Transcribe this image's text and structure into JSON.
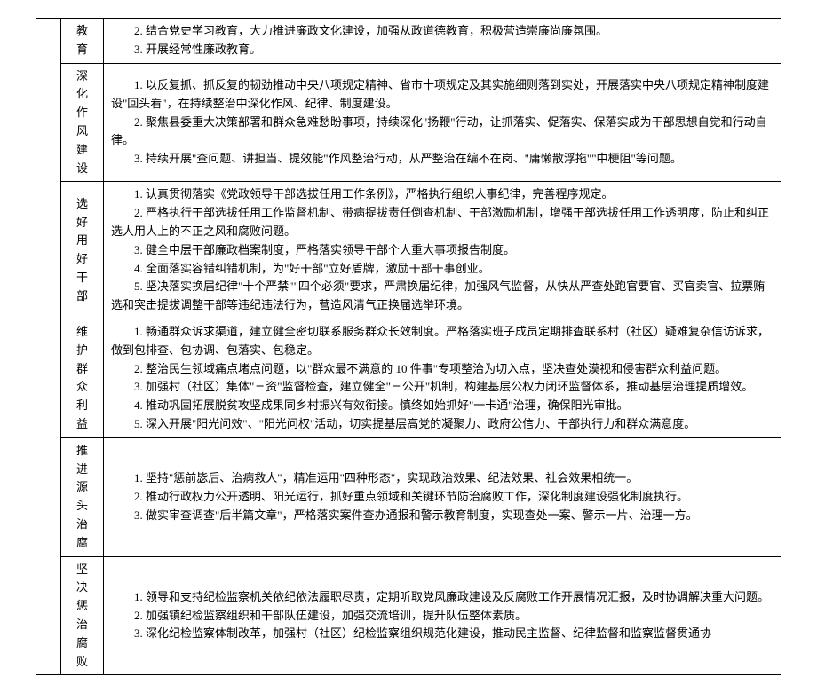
{
  "rows": [
    {
      "label": "教育",
      "lines": [
        "2. 结合党史学习教育，大力推进廉政文化建设，加强从政道德教育，积极营造崇廉尚廉氛围。",
        "3. 开展经常性廉政教育。"
      ]
    },
    {
      "label": "深化作风建设",
      "lines": [
        "1. 以反复抓、抓反复的韧劲推动中央八项规定精神、省市十项规定及其实施细则落到实处，开展落实中央八项规定精神制度建设\"回头看\"，在持续整治中深化作风、纪律、制度建设。",
        "2. 聚焦县委重大决策部署和群众急难愁盼事项，持续深化\"扬鞭\"行动，让抓落实、促落实、保落实成为干部思想自觉和行动自律。",
        "3. 持续开展\"查问题、讲担当、提效能\"作风整治行动，从严整治在编不在岗、\"庸懒散浮拖\"\"中梗阻\"等问题。"
      ]
    },
    {
      "label": "选好用好干部",
      "lines": [
        "1. 认真贯彻落实《党政领导干部选拔任用工作条例》，严格执行组织人事纪律，完善程序规定。",
        "2. 严格执行干部选拔任用工作监督机制、带病提拔责任倒查机制、干部激励机制，增强干部选拔任用工作透明度，防止和纠正选人用人上的不正之风和腐败问题。",
        "3. 健全中层干部廉政档案制度，严格落实领导干部个人重大事项报告制度。",
        "4. 全面落实容错纠错机制，为\"好干部\"立好盾牌，激励干部干事创业。",
        "5. 坚决落实换届纪律\"十个严禁\"\"四个必须\"要求，严肃换届纪律，加强风气监督，从快从严查处跑官要官、买官卖官、拉票贿选和突击提拔调整干部等违纪违法行为，营造风清气正换届选举环境。"
      ]
    },
    {
      "label": "维护群众利益",
      "lines": [
        "1. 畅通群众诉求渠道，建立健全密切联系服务群众长效制度。严格落实班子成员定期排查联系村（社区）疑难复杂信访诉求，做到包排查、包协调、包落实、包稳定。",
        "2. 整治民生领域痛点堵点问题，以\"群众最不满意的 10 件事\"专项整治为切入点，坚决查处漠视和侵害群众利益问题。",
        "3. 加强村（社区）集体\"三资\"监督检查，建立健全\"三公开\"机制，构建基层公权力闭环监督体系，推动基层治理提质增效。",
        "4. 推动巩固拓展脱贫攻坚成果同乡村振兴有效衔接。慎终如始抓好\"一卡通\"治理，确保阳光审批。",
        "5. 深入开展\"阳光问效\"、\"阳光问权\"活动，切实提基层高党的凝聚力、政府公信力、干部执行力和群众满意度。"
      ]
    },
    {
      "label": "推进源头治腐",
      "lines": [
        "1. 坚持\"惩前毖后、治病救人\"，精准运用\"四种形态\"，实现政治效果、纪法效果、社会效果相统一。",
        "2. 推动行政权力公开透明、阳光运行，抓好重点领域和关键环节防治腐败工作，深化制度建设强化制度执行。",
        "3. 做实审查调查\"后半篇文章\"，严格落实案件查办通报和警示教育制度，实现查处一案、警示一片、治理一方。"
      ]
    },
    {
      "label": "坚决惩治腐败",
      "lines": [
        "1. 领导和支持纪检监察机关依纪依法履职尽责，定期听取党风廉政建设及反腐败工作开展情况汇报，及时协调解决重大问题。",
        "2. 加强镇纪检监察组织和干部队伍建设，加强交流培训，提升队伍整体素质。",
        "3. 深化纪检监察体制改革，加强村（社区）纪检监察组织规范化建设，推动民主监督、纪律监督和监察监督贯通协"
      ]
    }
  ]
}
